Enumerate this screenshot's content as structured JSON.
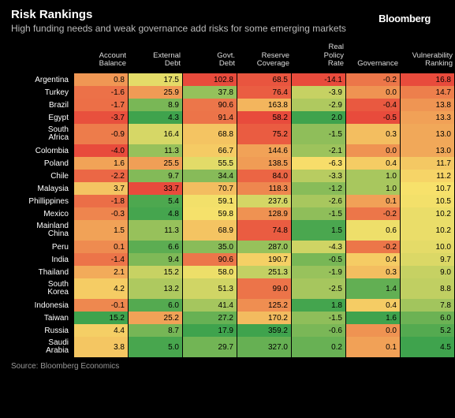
{
  "brand": "Bloomberg",
  "title": "Risk Rankings",
  "subtitle": "High funding needs and weak governance add risks for some emerging markets",
  "source": "Source: Bloomberg Economics",
  "heatmap": {
    "type": "heatmap",
    "color_scale": {
      "low": "#3fa34d",
      "mid": "#f7e26b",
      "high": "#e84b3c"
    },
    "background_color": "#000000",
    "text_color_cells": "#000000",
    "text_color_labels": "#ffffff",
    "header_fontsize": 9.5,
    "cell_fontsize": 10,
    "columns": [
      {
        "key": "account_balance",
        "label": "Account\nBalance",
        "min": -4.0,
        "max": 15.2,
        "invert": true
      },
      {
        "key": "external_debt",
        "label": "External\nDebt",
        "min": 4.3,
        "max": 33.7,
        "invert": false
      },
      {
        "key": "govt_debt",
        "label": "Govt.\nDebt",
        "min": 17.9,
        "max": 102.8,
        "invert": false
      },
      {
        "key": "reserve_coverage",
        "label": "Reserve\nCoverage",
        "min": 58.2,
        "max": 359.2,
        "invert": true
      },
      {
        "key": "real_policy_rate",
        "label": "Real\nPolicy\nRate",
        "min": -14.1,
        "max": 2.0,
        "invert": true
      },
      {
        "key": "governance",
        "label": "Governance",
        "min": -0.5,
        "max": 1.6,
        "invert": true
      },
      {
        "key": "vulnerability",
        "label": "Vulnerability\nRanking",
        "min": 4.5,
        "max": 16.8,
        "invert": false
      }
    ],
    "rows": [
      {
        "label": "Argentina",
        "account_balance": 0.8,
        "external_debt": 17.5,
        "govt_debt": 102.8,
        "reserve_coverage": 68.5,
        "real_policy_rate": -14.1,
        "governance": -0.2,
        "vulnerability": 16.8
      },
      {
        "label": "Turkey",
        "account_balance": -1.6,
        "external_debt": 25.9,
        "govt_debt": 37.8,
        "reserve_coverage": 76.4,
        "real_policy_rate": -3.9,
        "governance": 0.0,
        "vulnerability": 14.7
      },
      {
        "label": "Brazil",
        "account_balance": -1.7,
        "external_debt": 8.9,
        "govt_debt": 90.6,
        "reserve_coverage": 163.8,
        "real_policy_rate": -2.9,
        "governance": -0.4,
        "vulnerability": 13.8
      },
      {
        "label": "Egypt",
        "account_balance": -3.7,
        "external_debt": 4.3,
        "govt_debt": 91.4,
        "reserve_coverage": 58.2,
        "real_policy_rate": 2.0,
        "governance": -0.5,
        "vulnerability": 13.3
      },
      {
        "label": "South Africa",
        "account_balance": -0.9,
        "external_debt": 16.4,
        "govt_debt": 68.8,
        "reserve_coverage": 75.2,
        "real_policy_rate": -1.5,
        "governance": 0.3,
        "vulnerability": 13.0
      },
      {
        "label": "Colombia",
        "account_balance": -4.0,
        "external_debt": 11.3,
        "govt_debt": 66.7,
        "reserve_coverage": 144.6,
        "real_policy_rate": -2.1,
        "governance": 0.0,
        "vulnerability": 13.0
      },
      {
        "label": "Poland",
        "account_balance": 1.6,
        "external_debt": 25.5,
        "govt_debt": 55.5,
        "reserve_coverage": 138.5,
        "real_policy_rate": -6.3,
        "governance": 0.4,
        "vulnerability": 11.7
      },
      {
        "label": "Chile",
        "account_balance": -2.2,
        "external_debt": 9.7,
        "govt_debt": 34.4,
        "reserve_coverage": 84.0,
        "real_policy_rate": -3.3,
        "governance": 1.0,
        "vulnerability": 11.2
      },
      {
        "label": "Malaysia",
        "account_balance": 3.7,
        "external_debt": 33.7,
        "govt_debt": 70.7,
        "reserve_coverage": 118.3,
        "real_policy_rate": -1.2,
        "governance": 1.0,
        "vulnerability": 10.7
      },
      {
        "label": "Phillippines",
        "account_balance": -1.8,
        "external_debt": 5.4,
        "govt_debt": 59.1,
        "reserve_coverage": 237.6,
        "real_policy_rate": -2.6,
        "governance": 0.1,
        "vulnerability": 10.5
      },
      {
        "label": "Mexico",
        "account_balance": -0.3,
        "external_debt": 4.8,
        "govt_debt": 59.8,
        "reserve_coverage": 128.9,
        "real_policy_rate": -1.5,
        "governance": -0.2,
        "vulnerability": 10.2
      },
      {
        "label": "Mainland China",
        "account_balance": 1.5,
        "external_debt": 11.3,
        "govt_debt": 68.9,
        "reserve_coverage": 74.8,
        "real_policy_rate": 1.5,
        "governance": 0.6,
        "vulnerability": 10.2
      },
      {
        "label": "Peru",
        "account_balance": 0.1,
        "external_debt": 6.6,
        "govt_debt": 35.0,
        "reserve_coverage": 287.0,
        "real_policy_rate": -4.3,
        "governance": -0.2,
        "vulnerability": 10.0
      },
      {
        "label": "India",
        "account_balance": -1.4,
        "external_debt": 9.4,
        "govt_debt": 90.6,
        "reserve_coverage": 190.7,
        "real_policy_rate": -0.5,
        "governance": 0.4,
        "vulnerability": 9.7
      },
      {
        "label": "Thailand",
        "account_balance": 2.1,
        "external_debt": 15.2,
        "govt_debt": 58.0,
        "reserve_coverage": 251.3,
        "real_policy_rate": -1.9,
        "governance": 0.3,
        "vulnerability": 9.0
      },
      {
        "label": "South Korea",
        "account_balance": 4.2,
        "external_debt": 13.2,
        "govt_debt": 51.3,
        "reserve_coverage": 99.0,
        "real_policy_rate": -2.5,
        "governance": 1.4,
        "vulnerability": 8.8
      },
      {
        "label": "Indonesia",
        "account_balance": -0.1,
        "external_debt": 6.0,
        "govt_debt": 41.4,
        "reserve_coverage": 125.2,
        "real_policy_rate": 1.8,
        "governance": 0.4,
        "vulnerability": 7.8
      },
      {
        "label": "Taiwan",
        "account_balance": 15.2,
        "external_debt": 25.2,
        "govt_debt": 27.2,
        "reserve_coverage": 170.2,
        "real_policy_rate": -1.5,
        "governance": 1.6,
        "vulnerability": 6.0
      },
      {
        "label": "Russia",
        "account_balance": 4.4,
        "external_debt": 8.7,
        "govt_debt": 17.9,
        "reserve_coverage": 359.2,
        "real_policy_rate": -0.6,
        "governance": 0.0,
        "vulnerability": 5.2
      },
      {
        "label": "Saudi Arabia",
        "account_balance": 3.8,
        "external_debt": 5.0,
        "govt_debt": 29.7,
        "reserve_coverage": 327.0,
        "real_policy_rate": 0.2,
        "governance": 0.1,
        "vulnerability": 4.5
      }
    ]
  }
}
